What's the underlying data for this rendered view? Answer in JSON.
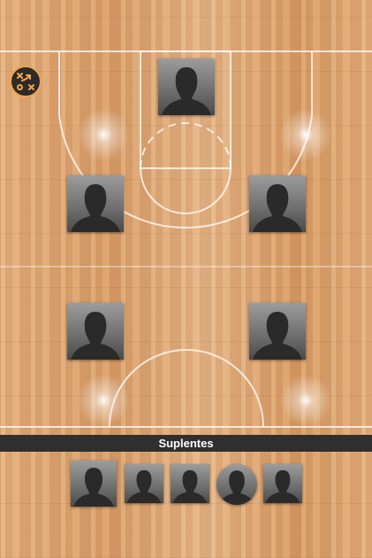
{
  "toolbar": {
    "tactics_icon": "playbook-icon",
    "accent_color": "#f3a44a"
  },
  "court": {
    "starters": [
      {
        "role": "player-silhouette"
      },
      {
        "role": "player-silhouette"
      },
      {
        "role": "player-silhouette"
      },
      {
        "role": "player-silhouette"
      },
      {
        "role": "player-silhouette"
      }
    ]
  },
  "bench": {
    "title": "Suplentes",
    "players": [
      {
        "role": "player-silhouette"
      },
      {
        "role": "player-silhouette"
      },
      {
        "role": "player-silhouette"
      },
      {
        "role": "player-silhouette",
        "shape": "round"
      },
      {
        "role": "player-silhouette"
      }
    ]
  }
}
